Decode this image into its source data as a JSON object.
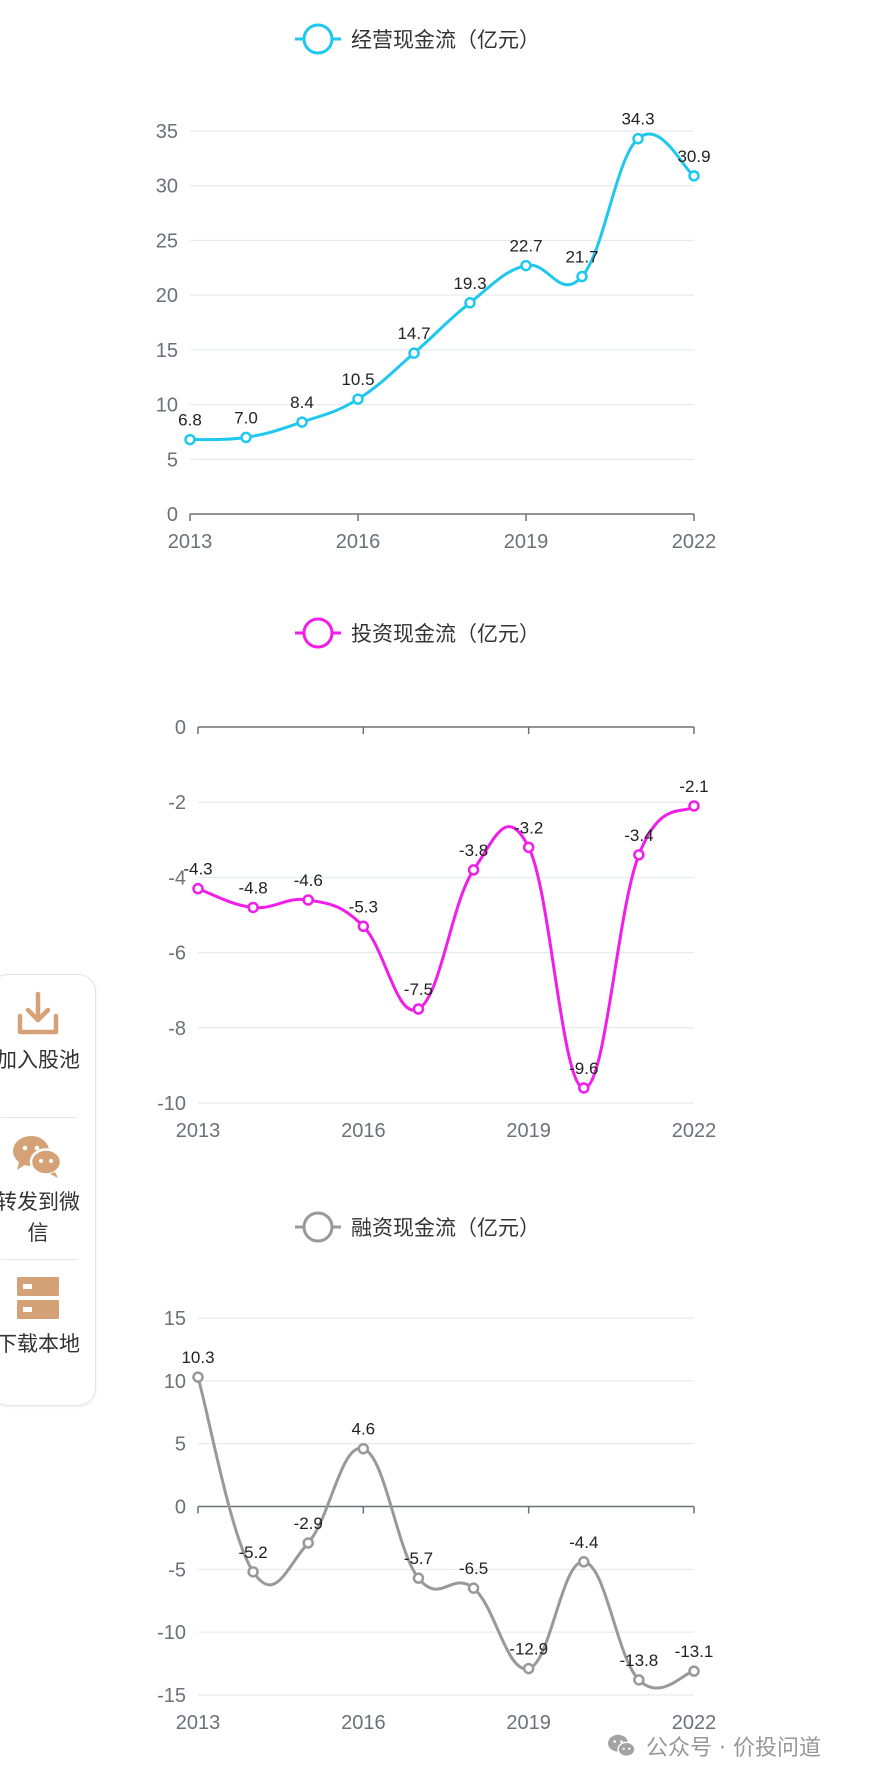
{
  "chart_data": [
    {
      "type": "line",
      "legend": "经营现金流（亿元）",
      "color": "#1ec8ee",
      "x": [
        2013,
        2014,
        2015,
        2016,
        2017,
        2018,
        2019,
        2020,
        2021,
        2022
      ],
      "xticks": [
        "2013",
        "2016",
        "2019",
        "2022"
      ],
      "values": [
        6.8,
        7.0,
        8.4,
        10.5,
        14.7,
        19.3,
        22.7,
        21.7,
        34.3,
        30.9
      ],
      "labels": [
        "6.8",
        "7.0",
        "8.4",
        "10.5",
        "14.7",
        "19.3",
        "22.7",
        "21.7",
        "34.3",
        "30.9"
      ],
      "yticks": [
        "0",
        "5",
        "10",
        "15",
        "20",
        "25",
        "30",
        "35"
      ],
      "ylim": [
        0,
        35
      ]
    },
    {
      "type": "line",
      "legend": "投资现金流（亿元）",
      "color": "#f01ee8",
      "x": [
        2013,
        2014,
        2015,
        2016,
        2017,
        2018,
        2019,
        2020,
        2021,
        2022
      ],
      "xticks": [
        "2013",
        "2016",
        "2019",
        "2022"
      ],
      "values": [
        -4.3,
        -4.8,
        -4.6,
        -5.3,
        -7.5,
        -3.8,
        -3.2,
        -9.6,
        -3.4,
        -2.1
      ],
      "labels": [
        "-4.3",
        "-4.8",
        "-4.6",
        "-5.3",
        "-7.5",
        "-3.8",
        "-3.2",
        "-9.6",
        "-3.4",
        "-2.1"
      ],
      "yticks": [
        "-10",
        "-8",
        "-6",
        "-4",
        "-2",
        "0"
      ],
      "ylim": [
        -10,
        0
      ]
    },
    {
      "type": "line",
      "legend": "融资现金流（亿元）",
      "color": "#999999",
      "x": [
        2013,
        2014,
        2015,
        2016,
        2017,
        2018,
        2019,
        2020,
        2021,
        2022
      ],
      "xticks": [
        "2013",
        "2016",
        "2019",
        "2022"
      ],
      "values": [
        10.3,
        -5.2,
        -2.9,
        4.6,
        -5.7,
        -6.5,
        -12.9,
        -4.4,
        -13.8,
        -13.1
      ],
      "labels": [
        "10.3",
        "-5.2",
        "-2.9",
        "4.6",
        "-5.7",
        "-6.5",
        "-12.9",
        "-4.4",
        "-13.8",
        "-13.1"
      ],
      "yticks": [
        "-15",
        "-10",
        "-5",
        "0",
        "5",
        "10",
        "15"
      ],
      "ylim": [
        -15,
        15
      ]
    }
  ],
  "toolbar": {
    "items": [
      {
        "icon": "download-icon",
        "label": "加入股池"
      },
      {
        "icon": "wechat-icon",
        "label": "转发到微信"
      },
      {
        "icon": "storage-icon",
        "label": "下载本地"
      }
    ]
  },
  "watermark": {
    "icon": "wechat-icon",
    "text": "公众号 · 价投问道"
  }
}
